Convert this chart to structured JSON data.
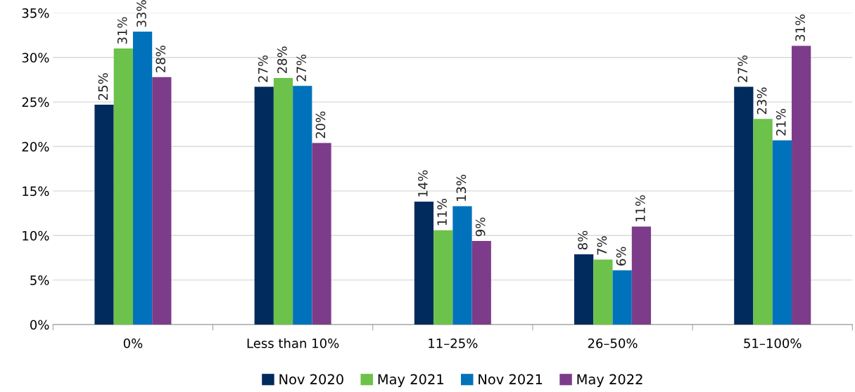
{
  "chart_data": {
    "type": "bar",
    "categories": [
      "0%",
      "Less than 10%",
      "11–25%",
      "26–50%",
      "51–100%"
    ],
    "series": [
      {
        "name": "Nov 2020",
        "color": "#002b5c",
        "values": [
          24.7,
          26.7,
          13.8,
          7.9,
          26.7
        ],
        "value_labels": [
          "25%",
          "27%",
          "14%",
          "8%",
          "27%"
        ]
      },
      {
        "name": "May 2021",
        "color": "#6cc24a",
        "values": [
          31.0,
          27.7,
          10.6,
          7.3,
          23.1
        ],
        "value_labels": [
          "31%",
          "28%",
          "11%",
          "7%",
          "23%"
        ]
      },
      {
        "name": "Nov 2021",
        "color": "#0072bb",
        "values": [
          32.9,
          26.8,
          13.3,
          6.1,
          20.7
        ],
        "value_labels": [
          "33%",
          "27%",
          "13%",
          "6%",
          "21%"
        ]
      },
      {
        "name": "May 2022",
        "color": "#7d3c8a",
        "values": [
          27.8,
          20.4,
          9.4,
          11.0,
          31.3
        ],
        "value_labels": [
          "28%",
          "20%",
          "9%",
          "11%",
          "31%"
        ]
      }
    ],
    "ylim": [
      0,
      35
    ],
    "yticks": [
      {
        "value": 0,
        "label": "0%"
      },
      {
        "value": 5,
        "label": "5%"
      },
      {
        "value": 10,
        "label": "10%"
      },
      {
        "value": 15,
        "label": "15%"
      },
      {
        "value": 20,
        "label": "20%"
      },
      {
        "value": 25,
        "label": "25%"
      },
      {
        "value": 30,
        "label": "30%"
      },
      {
        "value": 35,
        "label": "35%"
      }
    ],
    "grid": "y",
    "legend": "bottom"
  }
}
